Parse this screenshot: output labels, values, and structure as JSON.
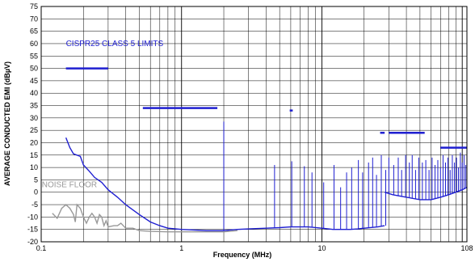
{
  "chart_data": {
    "type": "line",
    "title": "",
    "xlabel": "Frequency (MHz)",
    "ylabel": "AVERAGE CONDUCTED EMI (dBµV)",
    "x_scale": "log",
    "xlim": [
      0.1,
      108
    ],
    "ylim": [
      -20,
      75
    ],
    "x_tick_labels": [
      "0.1",
      "1",
      "10",
      "108"
    ],
    "x_ticks": [
      0.1,
      1,
      10,
      108
    ],
    "y_ticks": [
      -20,
      -15,
      -10,
      -5,
      0,
      5,
      10,
      15,
      20,
      25,
      30,
      35,
      40,
      45,
      50,
      55,
      60,
      65,
      70,
      75
    ],
    "grid": true,
    "annotations": [
      {
        "text": "CISPR25 CLASS 5 LIMITS",
        "x": 0.15,
        "y": 59,
        "color": "#1f1fd1"
      },
      {
        "text": "NOISE FLOOR",
        "x": 0.101,
        "y": 2,
        "color": "#999999"
      }
    ],
    "series": [
      {
        "role": "limits",
        "color": "#1f1fd1",
        "segments": [
          {
            "x": [
              0.15,
              0.3
            ],
            "y": [
              50,
              50
            ]
          },
          {
            "x": [
              0.53,
              1.8
            ],
            "y": [
              34,
              34
            ]
          },
          {
            "x": [
              5.9,
              6.2
            ],
            "y": [
              33,
              33
            ]
          },
          {
            "x": [
              26,
              28
            ],
            "y": [
              24,
              24
            ]
          },
          {
            "x": [
              30,
              54
            ],
            "y": [
              24,
              24
            ]
          },
          {
            "x": [
              70,
              108
            ],
            "y": [
              18,
              18
            ]
          }
        ]
      },
      {
        "role": "emission",
        "color": "#1f1fd1",
        "points": [
          [
            0.15,
            22
          ],
          [
            0.16,
            18
          ],
          [
            0.17,
            15.5
          ],
          [
            0.19,
            14.5
          ],
          [
            0.2,
            11
          ],
          [
            0.22,
            8.5
          ],
          [
            0.24,
            6
          ],
          [
            0.27,
            4
          ],
          [
            0.3,
            1
          ],
          [
            0.35,
            -2
          ],
          [
            0.4,
            -5
          ],
          [
            0.5,
            -9
          ],
          [
            0.6,
            -12
          ],
          [
            0.7,
            -13.5
          ],
          [
            0.8,
            -14.5
          ],
          [
            1,
            -15
          ],
          [
            1.5,
            -15.5
          ],
          [
            2,
            -15.5
          ],
          [
            2.5,
            -15
          ],
          [
            3,
            -14.8
          ],
          [
            4,
            -14.5
          ],
          [
            5,
            -14.3
          ],
          [
            6,
            -14
          ],
          [
            8,
            -14
          ],
          [
            10,
            -14.5
          ],
          [
            12,
            -15
          ],
          [
            14,
            -15
          ],
          [
            16,
            -15
          ],
          [
            18,
            -14.8
          ],
          [
            20,
            -14.5
          ],
          [
            25,
            -14
          ],
          [
            28,
            -13.5
          ]
        ],
        "spikes": [
          [
            2,
            28.5
          ],
          [
            4.6,
            11
          ],
          [
            6.1,
            12.5
          ],
          [
            7.5,
            10.5
          ],
          [
            8.5,
            8
          ],
          [
            10.3,
            4
          ],
          [
            12.2,
            11
          ],
          [
            13.6,
            2
          ],
          [
            15,
            8
          ],
          [
            16.3,
            10
          ],
          [
            18.2,
            13
          ],
          [
            19.5,
            8
          ],
          [
            21.5,
            12
          ],
          [
            23,
            14
          ],
          [
            24.5,
            7
          ],
          [
            26.5,
            15
          ],
          [
            28.5,
            9
          ]
        ]
      },
      {
        "role": "emission-hf",
        "color": "#1f1fd1",
        "points": [
          [
            28,
            0
          ],
          [
            32,
            -1
          ],
          [
            40,
            -2
          ],
          [
            50,
            -3
          ],
          [
            60,
            -3
          ],
          [
            70,
            -2
          ],
          [
            80,
            -1
          ],
          [
            90,
            0
          ],
          [
            100,
            1
          ],
          [
            108,
            2
          ]
        ],
        "spikes": [
          [
            30,
            14
          ],
          [
            32.5,
            11
          ],
          [
            35,
            14
          ],
          [
            37,
            9
          ],
          [
            39.5,
            15
          ],
          [
            42,
            12
          ],
          [
            44,
            15
          ],
          [
            46.5,
            9
          ],
          [
            49,
            14
          ],
          [
            52,
            12
          ],
          [
            55,
            13
          ],
          [
            58,
            9
          ],
          [
            61,
            14
          ],
          [
            64,
            11
          ],
          [
            67,
            13
          ],
          [
            70,
            10
          ],
          [
            73,
            15
          ],
          [
            76,
            12
          ],
          [
            79,
            14
          ],
          [
            82,
            9
          ],
          [
            85,
            15
          ],
          [
            88,
            12
          ],
          [
            91,
            14
          ],
          [
            94,
            10
          ],
          [
            97,
            16
          ],
          [
            100,
            12
          ],
          [
            103,
            15
          ],
          [
            106,
            11
          ],
          [
            108,
            15
          ]
        ]
      },
      {
        "role": "noise-floor",
        "color": "#999999",
        "points": [
          [
            0.12,
            -8.5
          ],
          [
            0.13,
            -10.5
          ],
          [
            0.14,
            -6.5
          ],
          [
            0.15,
            -5
          ],
          [
            0.16,
            -6.5
          ],
          [
            0.17,
            -9
          ],
          [
            0.175,
            -12
          ],
          [
            0.18,
            -5
          ],
          [
            0.19,
            -6.5
          ],
          [
            0.2,
            -10
          ],
          [
            0.21,
            -12.5
          ],
          [
            0.22,
            -10
          ],
          [
            0.23,
            -8.5
          ],
          [
            0.24,
            -10
          ],
          [
            0.25,
            -12.5
          ],
          [
            0.26,
            -9
          ],
          [
            0.27,
            -10
          ],
          [
            0.28,
            -13.5
          ],
          [
            0.29,
            -11.5
          ],
          [
            0.3,
            -14
          ],
          [
            0.33,
            -13.5
          ],
          [
            0.35,
            -13.5
          ],
          [
            0.37,
            -12.5
          ],
          [
            0.4,
            -14.5
          ],
          [
            0.45,
            -14.5
          ],
          [
            0.5,
            -15.5
          ],
          [
            0.6,
            -15.8
          ],
          [
            0.8,
            -16
          ],
          [
            1,
            -16
          ],
          [
            1.5,
            -16
          ],
          [
            2,
            -16
          ],
          [
            2.5,
            -15.5
          ]
        ]
      }
    ]
  }
}
